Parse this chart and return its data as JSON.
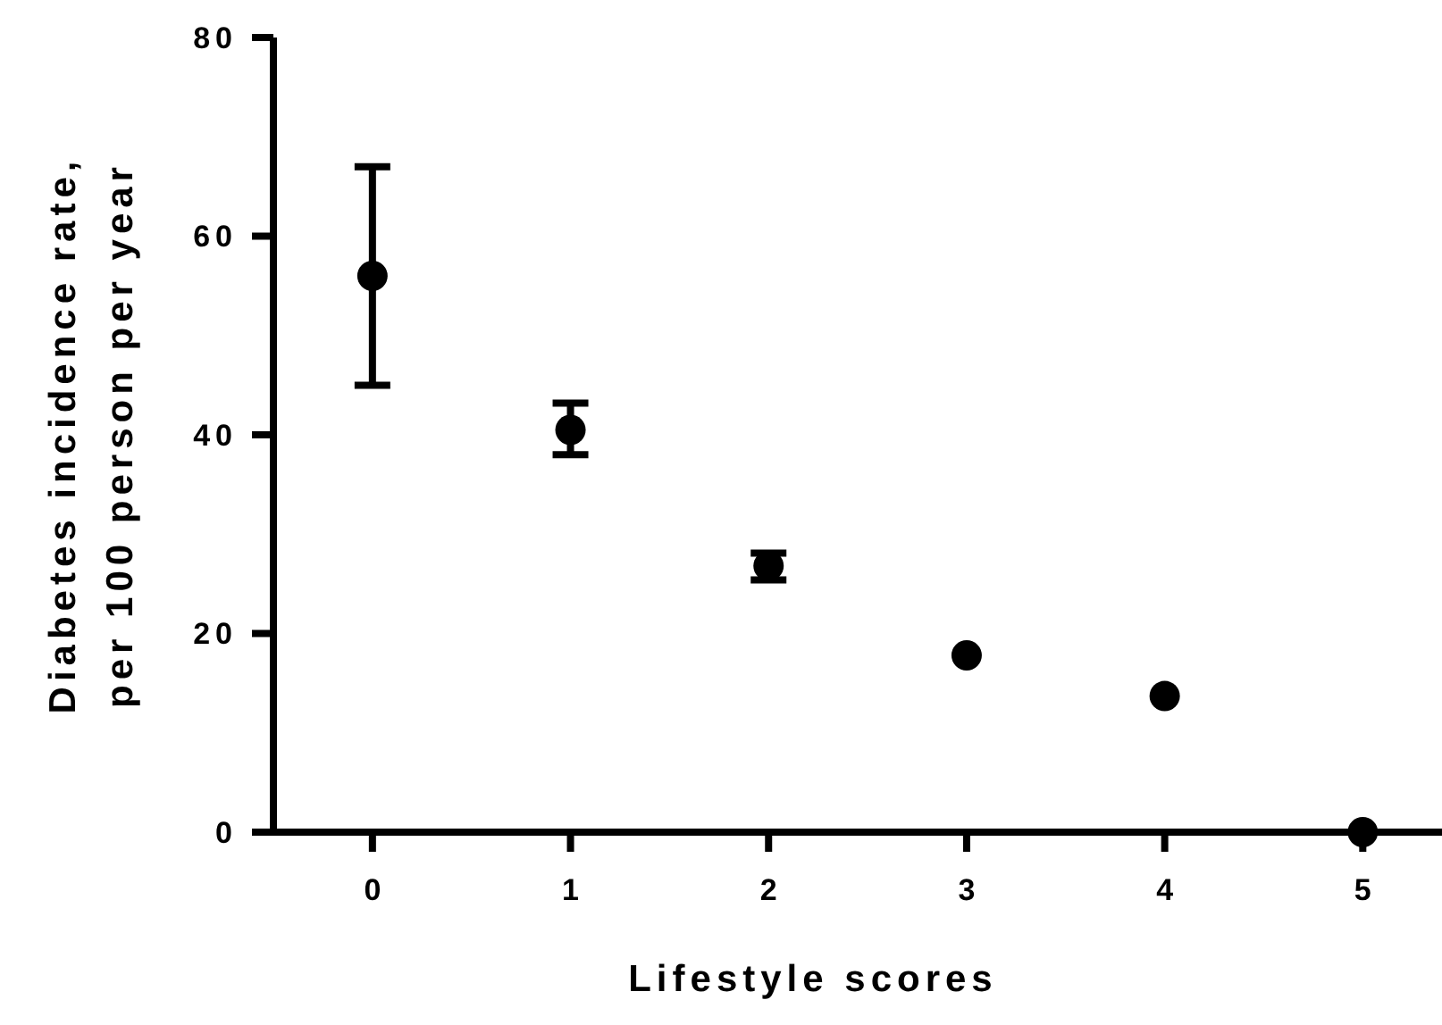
{
  "chart_data": {
    "type": "scatter",
    "xlabel": "Lifestyle scores",
    "ylabel": "Diabetes incidence rate,\nper 100 person per year",
    "x": [
      0,
      1,
      2,
      3,
      4,
      5
    ],
    "series": [
      {
        "color": "#000000",
        "values": [
          56,
          40.5,
          26.8,
          17.8,
          13.7,
          0
        ],
        "errors": [
          [
            45,
            67
          ],
          [
            38,
            43.2
          ],
          [
            25.4,
            28.1
          ],
          null,
          null,
          null
        ]
      }
    ],
    "xlim": [
      -0.5,
      5.4
    ],
    "xticks": [
      0,
      1,
      2,
      3,
      4,
      5
    ],
    "ylim": [
      0,
      80
    ],
    "yticks": [
      0,
      20,
      40,
      60,
      80
    ],
    "grid": false,
    "marker": "circle"
  }
}
